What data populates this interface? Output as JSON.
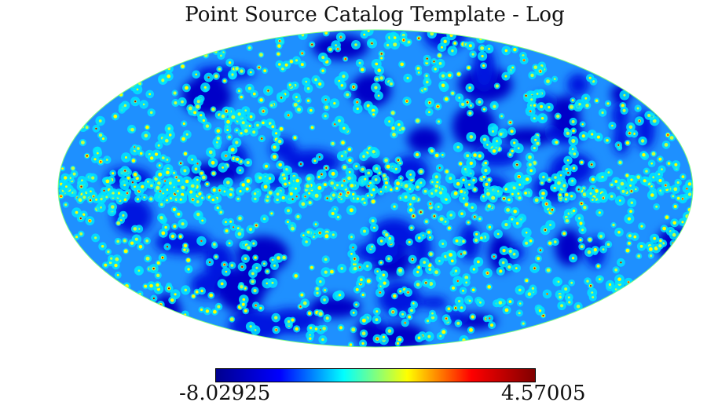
{
  "title": "Point Source Catalog Template - Log",
  "projection": "mollweide",
  "colormap": "jet",
  "colormap_stops": [
    "#00008f",
    "#0000ff",
    "#00ffff",
    "#ffff00",
    "#ff0000",
    "#800000"
  ],
  "colorbar": {
    "min_label": "-8.02925",
    "max_label": "4.57005",
    "min": -8.02925,
    "max": 4.57005
  }
}
